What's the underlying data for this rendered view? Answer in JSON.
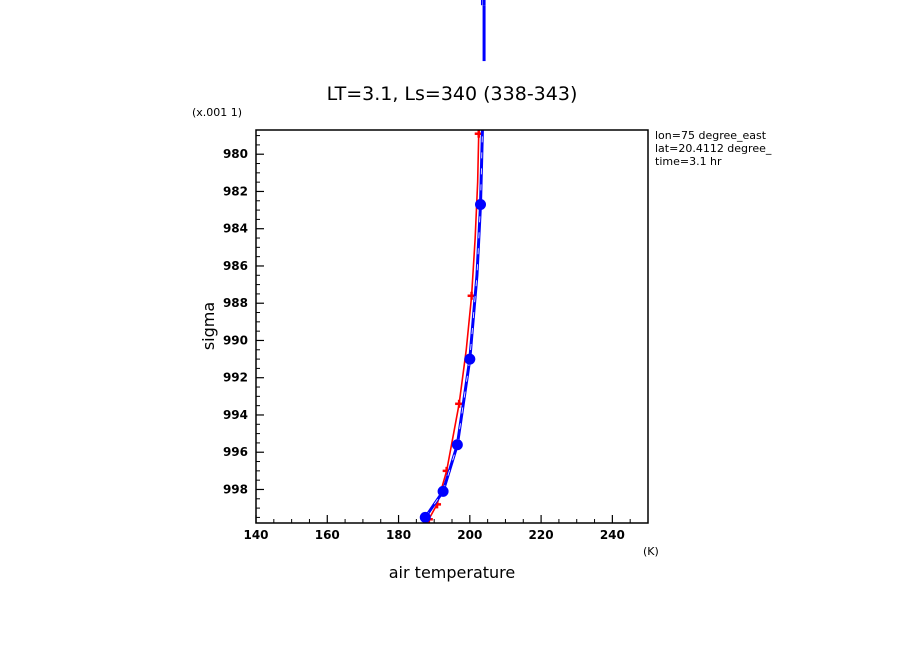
{
  "chart_data": {
    "type": "line",
    "title": "LT=3.1, Ls=340 (338-343)",
    "xlabel": "air temperature",
    "xunit": "(K)",
    "ylabel": "sigma",
    "yscale_note": "(x.001 1)",
    "xlim": [
      140,
      250
    ],
    "ylim": [
      999.8,
      978.7
    ],
    "y_inverted": true,
    "x_ticks": [
      140,
      160,
      180,
      200,
      220,
      240
    ],
    "y_ticks": [
      980,
      982,
      984,
      986,
      988,
      990,
      992,
      994,
      996,
      998
    ],
    "x_ticks_display": [
      "140",
      "160",
      "180",
      "200",
      "220",
      "240"
    ],
    "y_ticks_display": [
      "980",
      "982",
      "984",
      "986",
      "988",
      "990",
      "992",
      "994",
      "996",
      "998"
    ],
    "annotations": [
      "lon=75 degree_east",
      "lat=20.4112 degree_",
      "time=3.1 hr"
    ],
    "series": [
      {
        "color": "#ff0000",
        "marker": "plus",
        "x": [
          188.5,
          190.8,
          193.5,
          197.0,
          200.5,
          202.5
        ],
        "y": [
          999.6,
          998.8,
          997.0,
          993.4,
          987.6,
          978.9
        ],
        "line_x": [
          188.5,
          190.8,
          193.5,
          197.0,
          199.0,
          200.5,
          201.5,
          202.2,
          202.5
        ],
        "line_y": [
          999.6,
          998.8,
          997.0,
          993.4,
          990.5,
          987.6,
          984.5,
          981.5,
          978.9
        ]
      },
      {
        "color": "#0000ff",
        "marker": "circle",
        "x": [
          187.5,
          192.5,
          196.5,
          200.0,
          203.0
        ],
        "y": [
          999.5,
          998.1,
          995.6,
          991.0,
          982.7
        ],
        "line_x": [
          187.5,
          192.5,
          196.5,
          200.0,
          202.0,
          203.0,
          203.5,
          204.0,
          204.0
        ],
        "line_y": [
          999.5,
          998.1,
          995.6,
          991.0,
          986.5,
          982.7,
          979.0,
          975.0,
          972.0
        ]
      }
    ]
  }
}
